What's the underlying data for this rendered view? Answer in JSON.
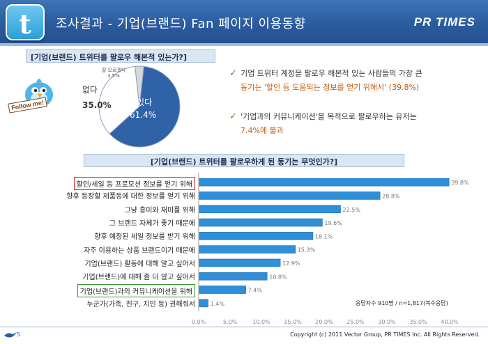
{
  "header": {
    "title": "조사결과 - 기업(브랜드) Fan 페이지 이용동향",
    "brand": "PR TIMES",
    "logo_letter": "t"
  },
  "section1": {
    "question": "[기업(브랜드) 트위터를 팔로우 해본적 있는가?]",
    "follow_badge": "Follow me!",
    "pie": {
      "type": "pie",
      "slices": [
        {
          "label": "있다",
          "value": 61.4,
          "color": "#2f62a7"
        },
        {
          "label": "없다",
          "value": 35.0,
          "color": "#ffffff"
        },
        {
          "label": "잘 모르겠다",
          "value": 3.5,
          "color": "#d7d7d7"
        }
      ],
      "labels_text": {
        "yes": "있다",
        "yes_pct": "61.4%",
        "no": "없다",
        "no_pct": "35.0%",
        "unknown": "잘 모르겠다",
        "unknown_pct": "3.5%"
      }
    },
    "notes": [
      {
        "line1": "기업 트위터 계정을 팔로우 해본적 있는 사람들의 가장 큰",
        "line2": "동기는 '할인 등 도움되는 정보를 얻기 위해서' (39.8%)"
      },
      {
        "line1": "'기업과의 커뮤니케이션'을 목적으로 팔로우하는 유저는",
        "line2": "7.4%에 불과"
      }
    ]
  },
  "section2": {
    "question": "[기업(브랜드) 트위터를 팔로우하게 된 동기는 무엇인가?]",
    "sample_note": "응답자수 910명 / n=1,817(복수응답)"
  },
  "chart_data": {
    "type": "bar",
    "orientation": "horizontal",
    "categories": [
      "할인/세일 등 프로모션 정보를 얻기 위해",
      "향후 등장할 제품등에 대한 정보를 얻기 위해",
      "그냥 흥미와 재미를 위해",
      "그 브랜드 자체가 좋기 때문에",
      "향후 예정된 세일 정보를 받기 위해",
      "자주 이용하는 상품 브랜드이기 때문에",
      "기업(브랜드) 활동에 대해 알고 싶어서",
      "기업(브랜드)에 대해 좀 더 알고 싶어서",
      "기업(브랜드)과의 커뮤니케이션을 위해",
      "누군가(가족, 친구, 지인 등) 권해줘서"
    ],
    "values": [
      39.8,
      28.8,
      22.5,
      19.6,
      18.1,
      15.3,
      12.9,
      10.8,
      7.4,
      1.4
    ],
    "value_labels": [
      "39.8%",
      "28.8%",
      "22.5%",
      "19.6%",
      "18.1%",
      "15.3%",
      "12.9%",
      "10.8%",
      "7.4%",
      "1.4%"
    ],
    "xlim": [
      0,
      40
    ],
    "xticks": [
      "0.0%",
      "5.0%",
      "10.0%",
      "15.0%",
      "20.0%",
      "25.0%",
      "30.0%",
      "35.0%",
      "40.0%"
    ],
    "highlight_red_index": 0,
    "highlight_green_index": 8,
    "bar_color": "#2f8fd8",
    "grid": false
  },
  "footer": {
    "page": "5",
    "copyright": "Copyright (c) 2011 Vector Group, PR TIMES Inc. All Rights Reserved."
  }
}
